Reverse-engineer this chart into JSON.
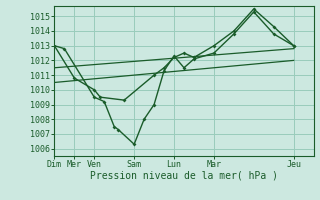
{
  "xlabel": "Pression niveau de la mer( hPa )",
  "background_color": "#cce8e0",
  "grid_color": "#99ccbb",
  "line_color": "#1a5c2a",
  "ylim": [
    1005.5,
    1015.7
  ],
  "yticks": [
    1006,
    1007,
    1008,
    1009,
    1010,
    1011,
    1012,
    1013,
    1014,
    1015
  ],
  "day_ticks_x": [
    0,
    1,
    2,
    4,
    6,
    8,
    12
  ],
  "day_labels": [
    "Dim",
    "Mer",
    "Ven",
    "Sam",
    "Lun",
    "Mar",
    "Jeu"
  ],
  "xlim": [
    0,
    13
  ],
  "line1_x": [
    0,
    0.5,
    2,
    2.5,
    3,
    3.2,
    4,
    4.5,
    5.0,
    5.5,
    6.0,
    6.5,
    7,
    8,
    9,
    10,
    11,
    12
  ],
  "line1_y": [
    1013.0,
    1012.8,
    1009.5,
    1009.2,
    1007.5,
    1007.3,
    1006.3,
    1008.0,
    1009.0,
    1011.3,
    1012.3,
    1011.5,
    1012.1,
    1012.5,
    1013.8,
    1015.3,
    1013.8,
    1013.0
  ],
  "line2_x": [
    0,
    1,
    2,
    2.3,
    3.5,
    5.0,
    5.5,
    6.0,
    6.5,
    7,
    8,
    9,
    10,
    11,
    12
  ],
  "line2_y": [
    1013.0,
    1010.8,
    1010.0,
    1009.5,
    1009.3,
    1011.0,
    1011.5,
    1012.2,
    1012.5,
    1012.2,
    1013.0,
    1014.0,
    1015.5,
    1014.3,
    1013.0
  ],
  "trend1_x": [
    0,
    12
  ],
  "trend1_y": [
    1010.5,
    1012.0
  ],
  "trend2_x": [
    0,
    12
  ],
  "trend2_y": [
    1011.5,
    1012.8
  ]
}
